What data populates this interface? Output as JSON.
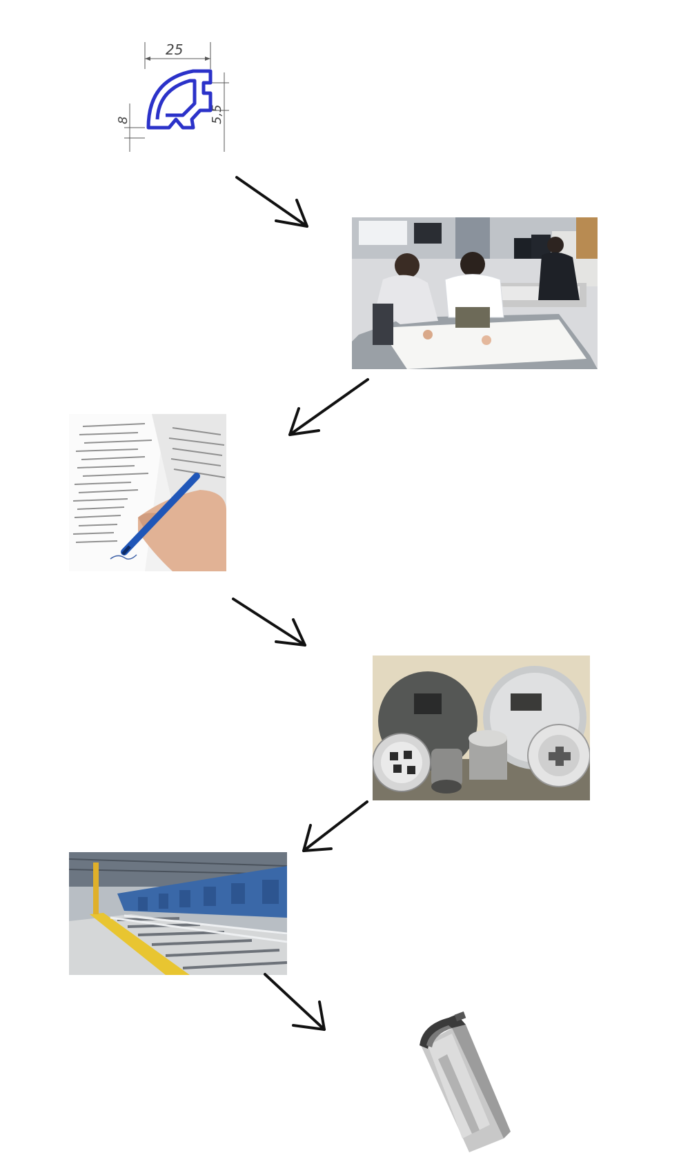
{
  "steps": [
    {
      "id": "drawing",
      "icon": "profile-drawing-icon",
      "dimensions": {
        "width": "25",
        "left": "8",
        "right": "5,5"
      },
      "colors": {
        "profile": "#2b32c9",
        "lines": "#555555"
      }
    },
    {
      "id": "engineering-design",
      "icon": "engineers-at-table-icon"
    },
    {
      "id": "contract-signing",
      "icon": "hand-signing-document-icon",
      "colors": {
        "pen": "#1f56b8"
      }
    },
    {
      "id": "extrusion-dies",
      "icon": "extrusion-dies-icon"
    },
    {
      "id": "extrusion-line",
      "icon": "factory-extrusion-line-icon",
      "colors": {
        "machine": "#3a68a8",
        "rail": "#e8c531"
      }
    },
    {
      "id": "finished-profile",
      "icon": "aluminium-profile-icon",
      "colors": {
        "metal": "#c8c8c8"
      }
    }
  ],
  "arrows": [
    {
      "from": "drawing",
      "to": "engineering-design",
      "direction": "down-right"
    },
    {
      "from": "engineering-design",
      "to": "contract-signing",
      "direction": "down-left"
    },
    {
      "from": "contract-signing",
      "to": "extrusion-dies",
      "direction": "down-right"
    },
    {
      "from": "extrusion-dies",
      "to": "extrusion-line",
      "direction": "down-left"
    },
    {
      "from": "extrusion-line",
      "to": "finished-profile",
      "direction": "down-right"
    }
  ]
}
